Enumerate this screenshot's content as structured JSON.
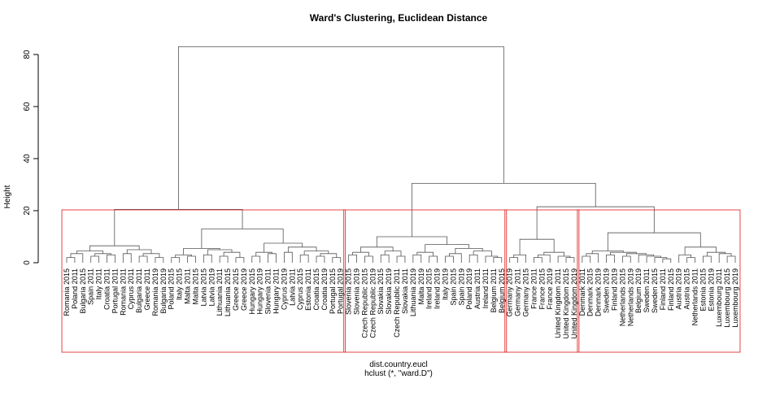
{
  "chart_data": {
    "type": "dendrogram",
    "title": "Ward's Clustering, Euclidean Distance",
    "xlabel": "dist.country.eucl",
    "sublabel": "hclust (*, \"ward.D\")",
    "ylabel": "Height",
    "ylim": [
      0,
      84
    ],
    "yticks": [
      0,
      20,
      40,
      60,
      80
    ],
    "colors": {
      "tree": "#555555",
      "rect": "#e03030",
      "axis": "#000000"
    },
    "leaves": [
      "Romania 2015",
      "Poland 2011",
      "Bulgaria 2015",
      "Spain 2011",
      "Italy 2011",
      "Croatia 2011",
      "Portugal 2011",
      "Romania 2011",
      "Cyprus 2011",
      "Bulgaria 2011",
      "Greece 2011",
      "Romania 2019",
      "Bulgaria 2019",
      "Poland 2015",
      "Italy 2015",
      "Malta 2011",
      "Malta 2015",
      "Latvia 2015",
      "Latvia 2019",
      "Lithuania 2011",
      "Lithuania 2015",
      "Greece 2015",
      "Greece 2019",
      "Hungary 2015",
      "Hungary 2019",
      "Slovenia 2011",
      "Hungary 2011",
      "Cyprus 2019",
      "Latvia 2011",
      "Cyprus 2015",
      "Estonia 2011",
      "Croatia 2015",
      "Croatia 2019",
      "Portugal 2015",
      "Portugal 2019",
      "Slovenia 2015",
      "Slovenia 2019",
      "Czech Republic 2015",
      "Czech Republic 2019",
      "Slovakia 2015",
      "Slovakia 2019",
      "Czech Republic 2011",
      "Slovakia 2011",
      "Lithuania 2019",
      "Malta 2019",
      "Ireland 2015",
      "Ireland 2019",
      "Italy 2019",
      "Spain 2015",
      "Spain 2019",
      "Poland 2019",
      "Austria 2011",
      "Ireland 2011",
      "Belgium 2011",
      "Belgium 2015",
      "Germany 2019",
      "Germany 2011",
      "Germany 2015",
      "France 2011",
      "France 2015",
      "France 2019",
      "United Kingdom 2011",
      "United Kingdom 2015",
      "United Kingdom 2019",
      "Denmark 2011",
      "Denmark 2015",
      "Denmark 2019",
      "Sweden 2019",
      "Finland 2019",
      "Netherlands 2015",
      "Netherlands 2019",
      "Belgium 2019",
      "Sweden 2011",
      "Sweden 2015",
      "Finland 2011",
      "Finland 2015",
      "Austria 2019",
      "Austria 2015",
      "Netherlands 2011",
      "Estonia 2015",
      "Estonia 2019",
      "Luxembourg 2011",
      "Luxembourg 2015",
      "Luxembourg 2019"
    ],
    "clusters_highlighted": 4
  }
}
